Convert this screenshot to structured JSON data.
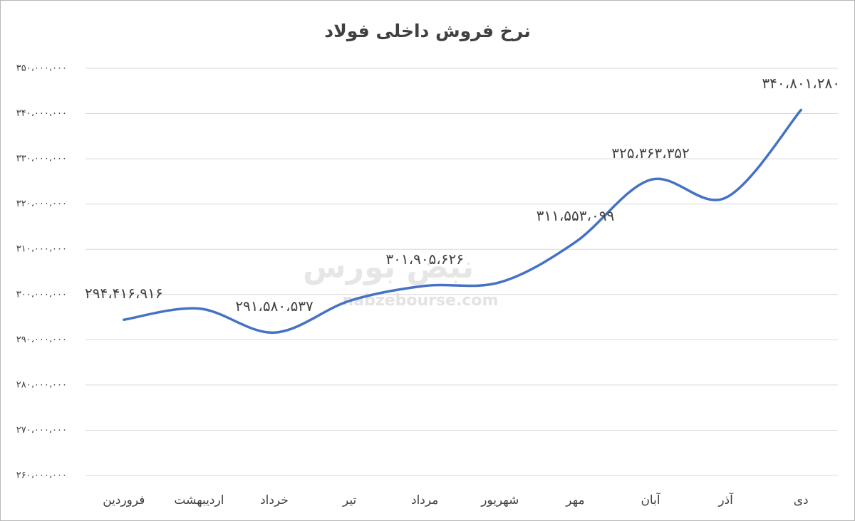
{
  "chart_data": {
    "type": "line",
    "title": "نرخ فروش داخلی فولاد",
    "categories": [
      "فروردین",
      "اردیبهشت",
      "خرداد",
      "تیر",
      "مرداد",
      "شهریور",
      "مهر",
      "آبان",
      "آذر",
      "دی"
    ],
    "values": [
      294416916,
      296900000,
      291580537,
      298600000,
      301905626,
      302700000,
      311553099,
      325363352,
      321400000,
      340801280
    ],
    "value_labels": [
      "۲۹۴،۴۱۶،۹۱۶",
      null,
      "۲۹۱،۵۸۰،۵۳۷",
      null,
      "۳۰۱،۹۰۵،۶۲۶",
      null,
      "۳۱۱،۵۵۳،۰۹۹",
      "۳۲۵،۳۶۳،۳۵۲",
      null,
      "۳۴۰،۸۰۱،۲۸۰"
    ],
    "color": "#4472c4",
    "ylim": [
      260000000,
      350000000
    ],
    "yticks": [
      {
        "value": 260000000,
        "label": "۲۶۰،۰۰۰،۰۰۰"
      },
      {
        "value": 270000000,
        "label": "۲۷۰،۰۰۰،۰۰۰"
      },
      {
        "value": 280000000,
        "label": "۲۸۰،۰۰۰،۰۰۰"
      },
      {
        "value": 290000000,
        "label": "۲۹۰،۰۰۰،۰۰۰"
      },
      {
        "value": 300000000,
        "label": "۳۰۰،۰۰۰،۰۰۰"
      },
      {
        "value": 310000000,
        "label": "۳۱۰،۰۰۰،۰۰۰"
      },
      {
        "value": 320000000,
        "label": "۳۲۰،۰۰۰،۰۰۰"
      },
      {
        "value": 330000000,
        "label": "۳۳۰،۰۰۰،۰۰۰"
      },
      {
        "value": 340000000,
        "label": "۳۴۰،۰۰۰،۰۰۰"
      },
      {
        "value": 350000000,
        "label": "۳۵۰،۰۰۰،۰۰۰"
      }
    ],
    "grid": true,
    "watermark": [
      "نبض بورس",
      "nabzebourse.com"
    ]
  }
}
